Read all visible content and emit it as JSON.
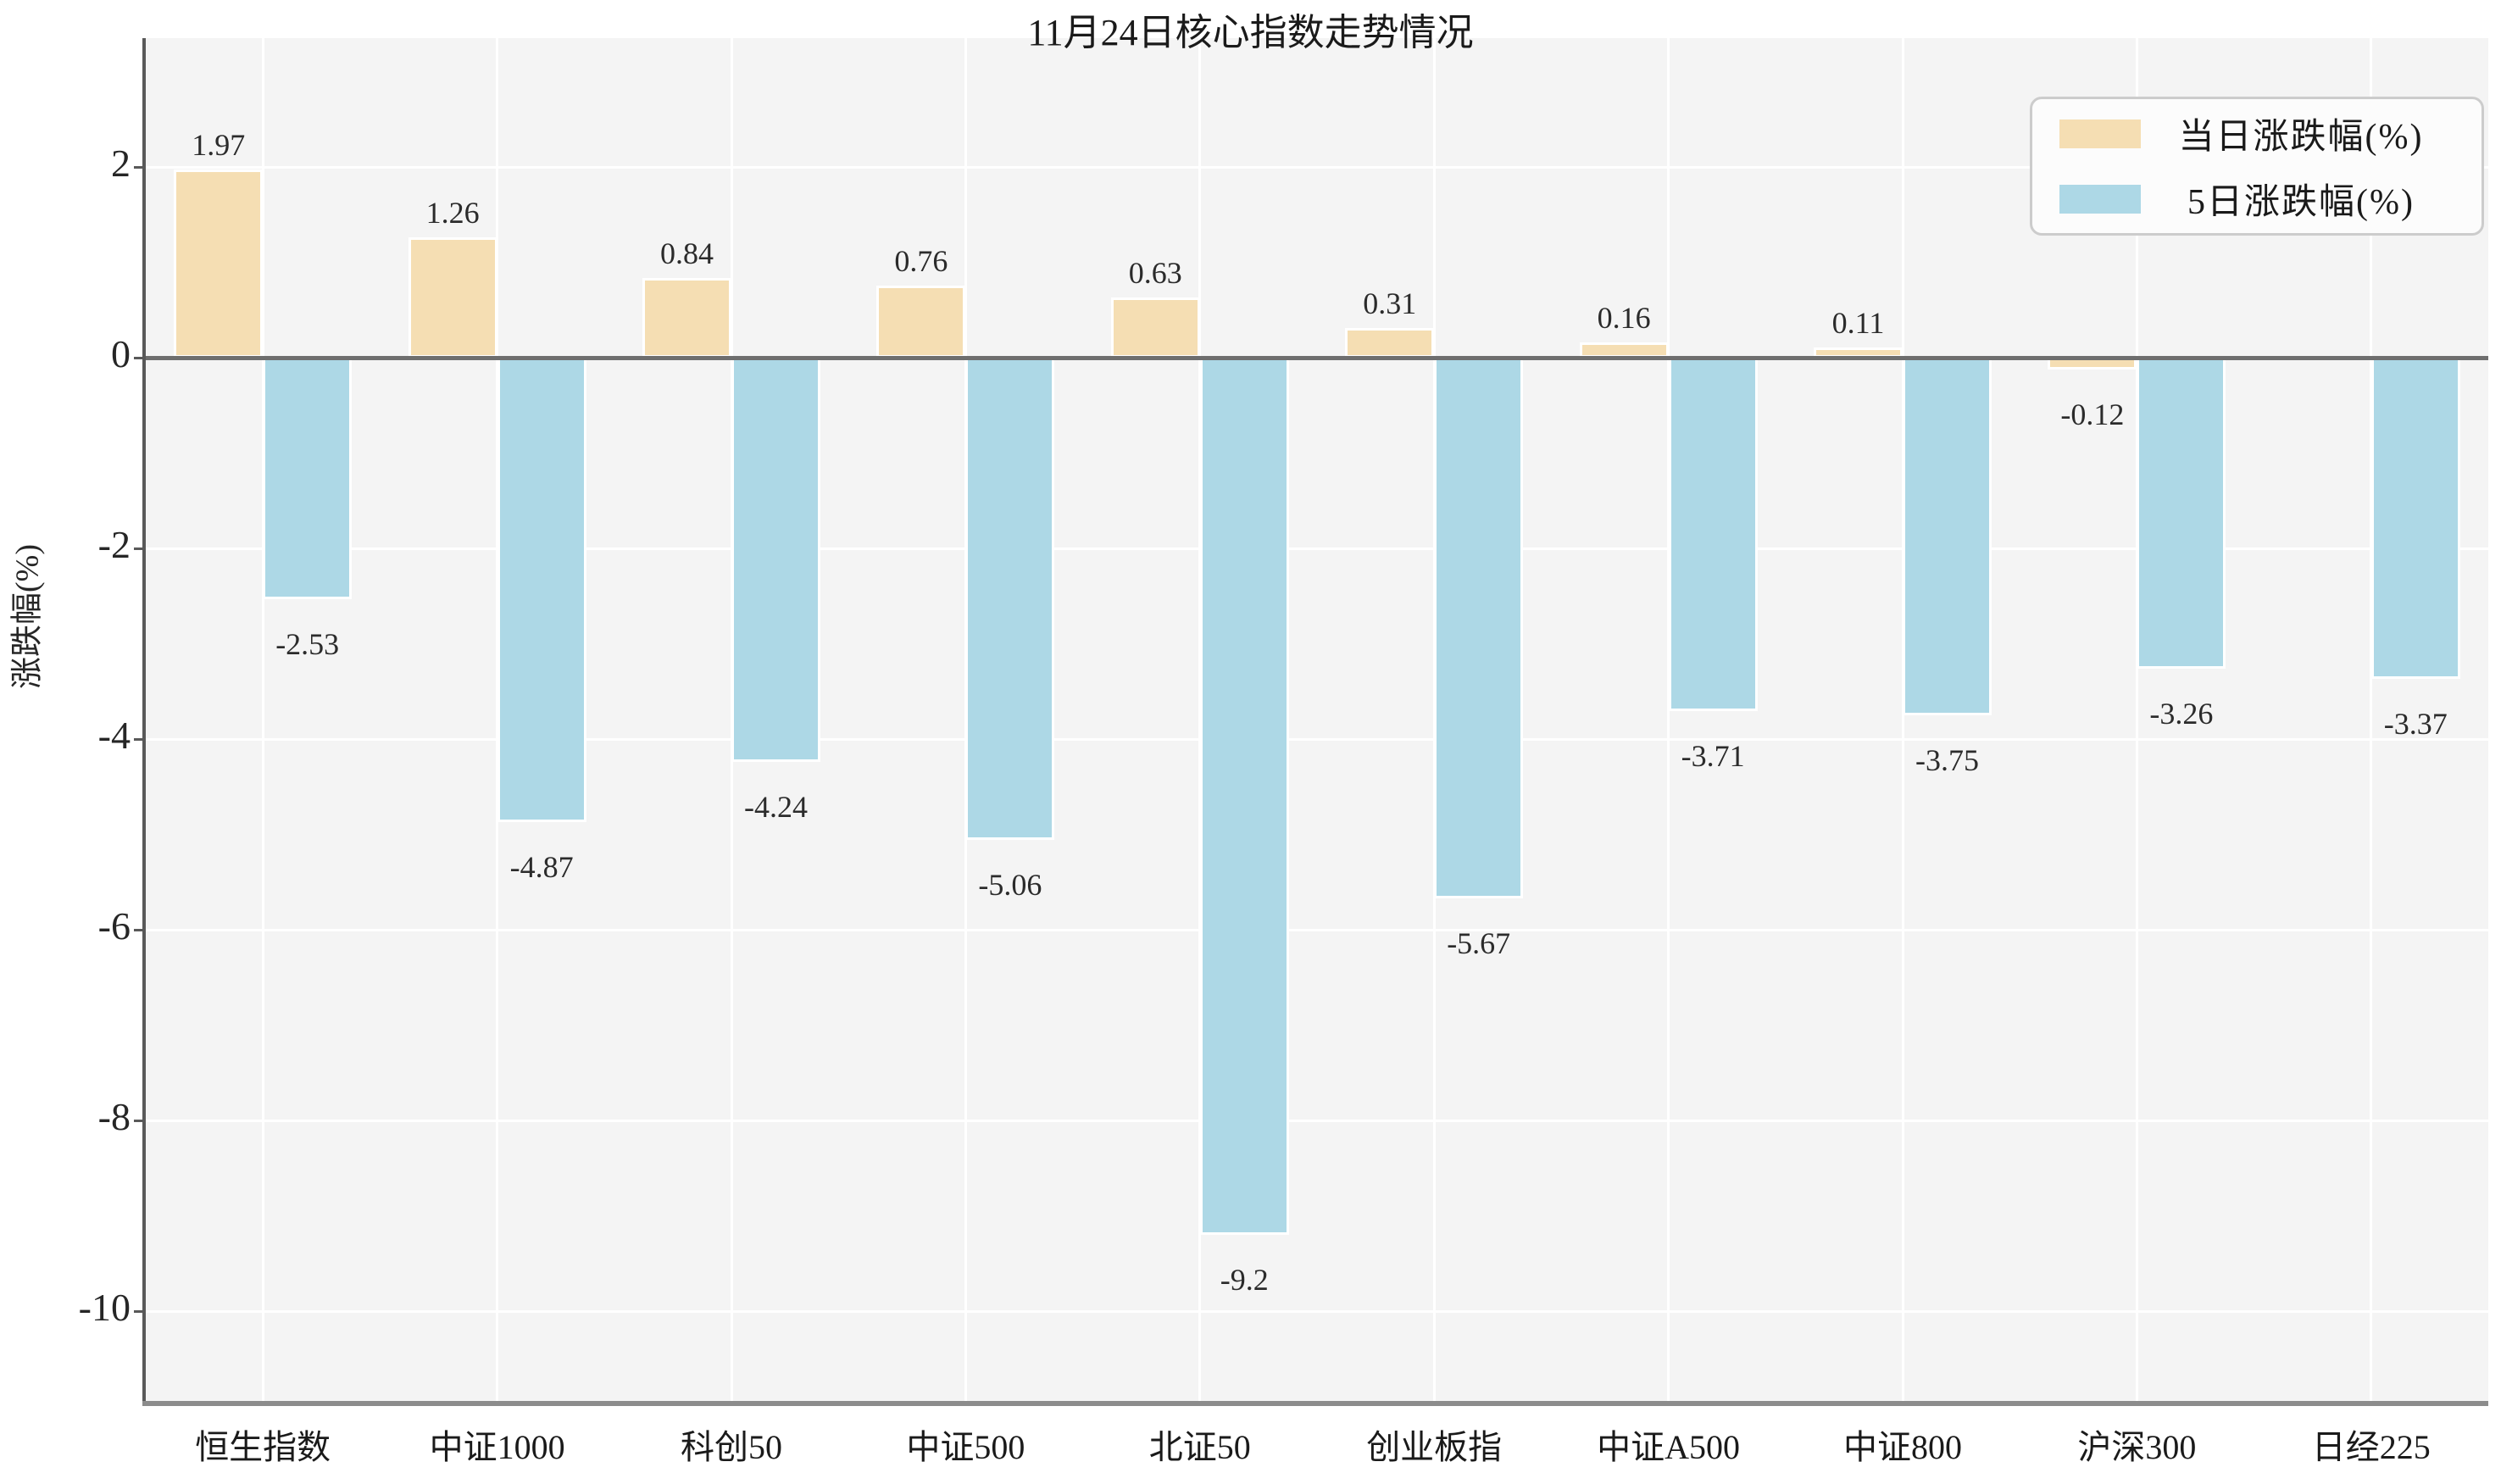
{
  "chart_data": {
    "type": "bar",
    "title": "11月24日核心指数走势情况",
    "ylabel": "涨跌幅(%)",
    "xlabel": "",
    "categories": [
      "恒生指数",
      "中证1000",
      "科创50",
      "中证500",
      "北证50",
      "创业板指",
      "中证A500",
      "中证800",
      "沪深300",
      "日经225"
    ],
    "series": [
      {
        "name": "当日涨跌幅(%)",
        "color": "#F5DEB3",
        "values": [
          1.97,
          1.26,
          0.84,
          0.76,
          0.63,
          0.31,
          0.16,
          0.11,
          -0.12,
          null
        ]
      },
      {
        "name": "5日涨跌幅(%)",
        "color": "#ADD8E6",
        "values": [
          -2.53,
          -4.87,
          -4.24,
          -5.06,
          -9.2,
          -5.67,
          -3.71,
          -3.75,
          -3.26,
          -3.37
        ]
      }
    ],
    "yticks": [
      2,
      0,
      -2,
      -4,
      -6,
      -8,
      -10
    ],
    "ylim": [
      -10.94,
      3.35
    ],
    "grid": true,
    "legend_position": "upper right",
    "colors": {
      "plot_background": "#f4f4f4",
      "figure_background": "#ffffff",
      "gridline": "#ffffff",
      "zero_line": "#6e6e6e",
      "bar_edge": "#ffffff",
      "text": "#1a1a1a"
    }
  }
}
